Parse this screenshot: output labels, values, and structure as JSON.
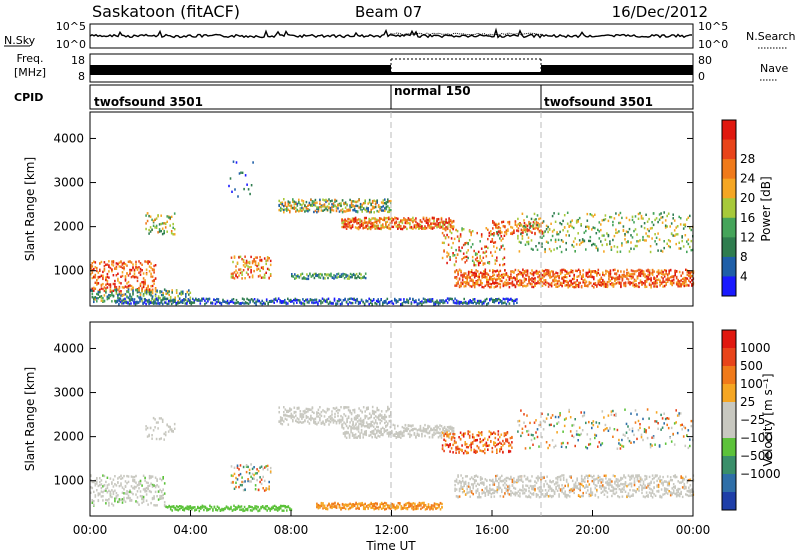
{
  "header": {
    "title": "Saskatoon (fitACF)",
    "beam": "Beam 07",
    "date": "16/Dec/2012"
  },
  "strip_labels": {
    "nsky": "N.Sky",
    "nsky_ticks": [
      "10^5",
      "10^0"
    ],
    "nsearch": "N.Search",
    "nsearch_ticks": [
      "10^5",
      "10^0"
    ],
    "freq_top": "Freq.",
    "freq_unit": "[MHz]",
    "freq_ticks": [
      "18",
      "8"
    ],
    "nave": "Nave",
    "nave_ticks": [
      "80",
      "0"
    ],
    "cpid": "CPID"
  },
  "cpid_segments": [
    {
      "label": "twofsound 3501",
      "start_h": 0,
      "end_h": 12
    },
    {
      "label": "normal 150",
      "start_h": 12,
      "end_h": 18
    },
    {
      "label": "twofsound 3501",
      "start_h": 18,
      "end_h": 24
    }
  ],
  "chart_data": [
    {
      "type": "heatmap",
      "name": "power",
      "ylabel": "Slant Range [km]",
      "yticks": [
        "1000",
        "2000",
        "3000",
        "4000"
      ],
      "ylim": [
        200,
        4600
      ],
      "xlim_hours": [
        0,
        24
      ],
      "colorbar_label": "Power [dB]",
      "colorbar_ticks": [
        "4",
        "8",
        "12",
        "16",
        "20",
        "24",
        "28"
      ],
      "colorbar_colors": [
        "#1a1aff",
        "#1f5fa8",
        "#2f7d4f",
        "#45a45a",
        "#a7c93a",
        "#f5a623",
        "#f07a1a",
        "#e8441a",
        "#e0180f"
      ]
    },
    {
      "type": "heatmap",
      "name": "velocity",
      "ylabel": "Slant Range [km]",
      "yticks": [
        "1000",
        "2000",
        "3000",
        "4000"
      ],
      "ylim": [
        200,
        4600
      ],
      "xlim_hours": [
        0,
        24
      ],
      "xlabel": "Time UT",
      "xticks": [
        "00:00",
        "04:00",
        "08:00",
        "12:00",
        "16:00",
        "20:00",
        "00:00"
      ],
      "colorbar_label": "Velocity [m s⁻¹]",
      "colorbar_ticks": [
        "1000",
        "500",
        "100",
        "25",
        "−25",
        "−100",
        "−500",
        "−1000"
      ],
      "colorbar_colors": [
        "#1f3fa8",
        "#2f6fa8",
        "#3a8f6a",
        "#5cc23a",
        "#c8c8c0",
        "#c8c8c0",
        "#f5a623",
        "#f07a1a",
        "#e8441a",
        "#e0180f"
      ]
    }
  ]
}
